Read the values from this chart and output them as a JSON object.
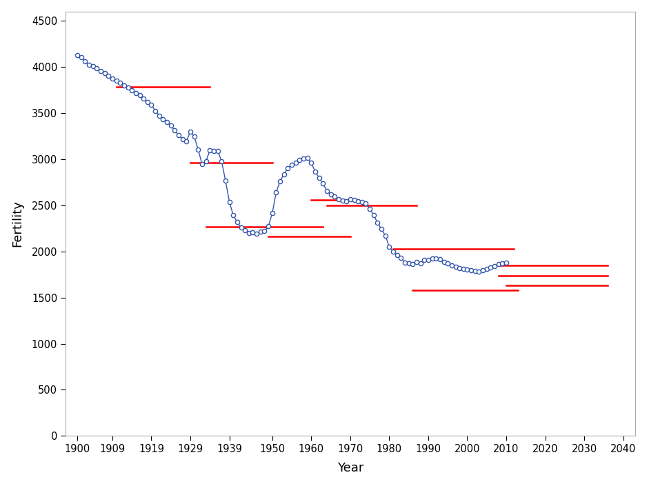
{
  "title": "",
  "xlabel": "Year",
  "ylabel": "Fertility",
  "xlim": [
    1897,
    2043
  ],
  "ylim": [
    0,
    4600
  ],
  "yticks": [
    0,
    500,
    1000,
    1500,
    2000,
    2500,
    3000,
    3500,
    4000,
    4500
  ],
  "xticks": [
    1900,
    1909,
    1919,
    1929,
    1939,
    1950,
    1960,
    1970,
    1980,
    1990,
    2000,
    2010,
    2020,
    2030,
    2040
  ],
  "background_color": "#ffffff",
  "plot_bg_color": "#ffffff",
  "line_color": "#3355aa",
  "forecast_color": "#ff0000",
  "marker_size": 4.5,
  "fertility_data": {
    "years": [
      1900,
      1901,
      1902,
      1903,
      1904,
      1905,
      1906,
      1907,
      1908,
      1909,
      1910,
      1911,
      1912,
      1913,
      1914,
      1915,
      1916,
      1917,
      1918,
      1919,
      1920,
      1921,
      1922,
      1923,
      1924,
      1925,
      1926,
      1927,
      1928,
      1929,
      1930,
      1931,
      1932,
      1933,
      1934,
      1935,
      1936,
      1937,
      1938,
      1939,
      1940,
      1941,
      1942,
      1943,
      1944,
      1945,
      1946,
      1947,
      1948,
      1949,
      1950,
      1951,
      1952,
      1953,
      1954,
      1955,
      1956,
      1957,
      1958,
      1959,
      1960,
      1961,
      1962,
      1963,
      1964,
      1965,
      1966,
      1967,
      1968,
      1969,
      1970,
      1971,
      1972,
      1973,
      1974,
      1975,
      1976,
      1977,
      1978,
      1979,
      1980,
      1981,
      1982,
      1983,
      1984,
      1985,
      1986,
      1987,
      1988,
      1989,
      1990,
      1991,
      1992,
      1993,
      1994,
      1995,
      1996,
      1997,
      1998,
      1999,
      2000,
      2001,
      2002,
      2003,
      2004,
      2005,
      2006,
      2007,
      2008,
      2009,
      2010
    ],
    "values": [
      4129,
      4102,
      4060,
      4022,
      4009,
      3986,
      3955,
      3930,
      3902,
      3871,
      3851,
      3825,
      3799,
      3773,
      3744,
      3718,
      3697,
      3655,
      3620,
      3590,
      3524,
      3473,
      3434,
      3405,
      3365,
      3310,
      3260,
      3216,
      3193,
      3300,
      3243,
      3102,
      2944,
      2976,
      3098,
      3087,
      3089,
      2980,
      2767,
      2538,
      2390,
      2320,
      2260,
      2231,
      2202,
      2206,
      2194,
      2214,
      2219,
      2272,
      2415,
      2641,
      2761,
      2838,
      2903,
      2941,
      2964,
      2990,
      3003,
      3012,
      2958,
      2867,
      2799,
      2734,
      2657,
      2616,
      2593,
      2565,
      2551,
      2546,
      2568,
      2561,
      2543,
      2533,
      2520,
      2464,
      2393,
      2309,
      2241,
      2171,
      2049,
      1998,
      1963,
      1927,
      1880,
      1870,
      1864,
      1882,
      1874,
      1905,
      1909,
      1920,
      1923,
      1913,
      1887,
      1869,
      1852,
      1837,
      1821,
      1813,
      1800,
      1796,
      1792,
      1781,
      1799,
      1809,
      1825,
      1839,
      1861,
      1872,
      1877
    ]
  },
  "forecast_lines": [
    {
      "x_start": 1910,
      "x_end": 1934,
      "y": 3780
    },
    {
      "x_start": 1929,
      "x_end": 1950,
      "y": 2960
    },
    {
      "x_start": 1933,
      "x_end": 1963,
      "y": 2270
    },
    {
      "x_start": 1949,
      "x_end": 1970,
      "y": 2160
    },
    {
      "x_start": 1960,
      "x_end": 1972,
      "y": 2560
    },
    {
      "x_start": 1964,
      "x_end": 1987,
      "y": 2500
    },
    {
      "x_start": 1981,
      "x_end": 2012,
      "y": 2030
    },
    {
      "x_start": 1986,
      "x_end": 2013,
      "y": 1580
    },
    {
      "x_start": 2007,
      "x_end": 2036,
      "y": 1850
    },
    {
      "x_start": 2008,
      "x_end": 2036,
      "y": 1740
    },
    {
      "x_start": 2010,
      "x_end": 2036,
      "y": 1635
    }
  ]
}
